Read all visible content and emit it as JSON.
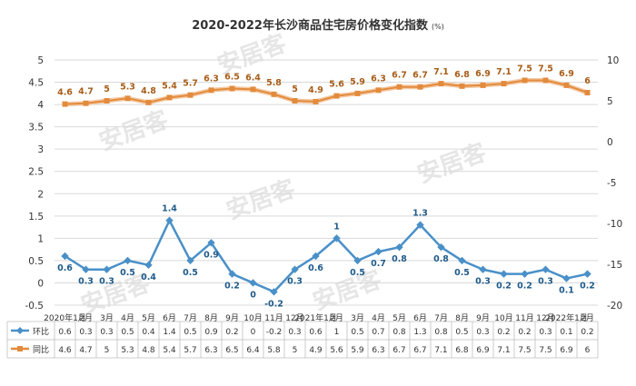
{
  "chart_data": {
    "type": "line",
    "title": "2020-2022年长沙商品住宅房价格变化指数",
    "title_unit": "(%)",
    "categories": [
      "2020年1月",
      "2月",
      "3月",
      "4月",
      "5月",
      "6月",
      "7月",
      "8月",
      "9月",
      "10月",
      "11月",
      "12月",
      "2021年1月",
      "2月",
      "3月",
      "4月",
      "5月",
      "6月",
      "7月",
      "8月",
      "9月",
      "10月",
      "11月",
      "12月",
      "2022年1月",
      "2月"
    ],
    "series": [
      {
        "name": "环比",
        "axis": "left",
        "color": "#4a90c8",
        "values": [
          0.6,
          0.3,
          0.3,
          0.5,
          0.4,
          1.4,
          0.5,
          0.9,
          0.2,
          0,
          -0.2,
          0.3,
          0.6,
          1,
          0.5,
          0.7,
          0.8,
          1.3,
          0.8,
          0.5,
          0.3,
          0.2,
          0.2,
          0.3,
          0.1,
          0.2
        ],
        "labels": [
          "0.6",
          "0.3",
          "0.3",
          "0.5",
          "0.4",
          "1.4",
          "0.5",
          "0.9",
          "0.2",
          "0",
          "-0.2",
          "0.3",
          "0.6",
          "1",
          "0.5",
          "0.7",
          "0.8",
          "1.3",
          "0.8",
          "0.5",
          "0.3",
          "0.2",
          "0.2",
          "0.3",
          "0.1",
          "0.2"
        ]
      },
      {
        "name": "同比",
        "axis": "right",
        "color": "#e38b3c",
        "values": [
          4.6,
          4.7,
          5,
          5.3,
          4.8,
          5.4,
          5.7,
          6.3,
          6.5,
          6.4,
          5.8,
          5,
          4.9,
          5.6,
          5.9,
          6.3,
          6.7,
          6.7,
          7.1,
          6.8,
          6.9,
          7.1,
          7.5,
          7.5,
          6.9,
          6
        ],
        "labels": [
          "4.6",
          "4.7",
          "5",
          "5.3",
          "4.8",
          "5.4",
          "5.7",
          "6.3",
          "6.5",
          "6.4",
          "5.8",
          "5",
          "4.9",
          "5.6",
          "5.9",
          "6.3",
          "6.7",
          "6.7",
          "7.1",
          "6.8",
          "6.9",
          "7.1",
          "7.5",
          "7.5",
          "6.9",
          "6"
        ]
      }
    ],
    "left_axis": {
      "ylim": [
        -0.5,
        5
      ],
      "ticks": [
        "5",
        "4.5",
        "4",
        "3.5",
        "3",
        "2.5",
        "2",
        "1.5",
        "1",
        "0.5",
        "0",
        "-0.5"
      ]
    },
    "right_axis": {
      "ylim": [
        -20,
        10
      ],
      "ticks": [
        "10",
        "5",
        "0",
        "-5",
        "-10",
        "-15",
        "-20"
      ]
    },
    "grid": true,
    "data_table": true,
    "watermark": "安居客"
  }
}
